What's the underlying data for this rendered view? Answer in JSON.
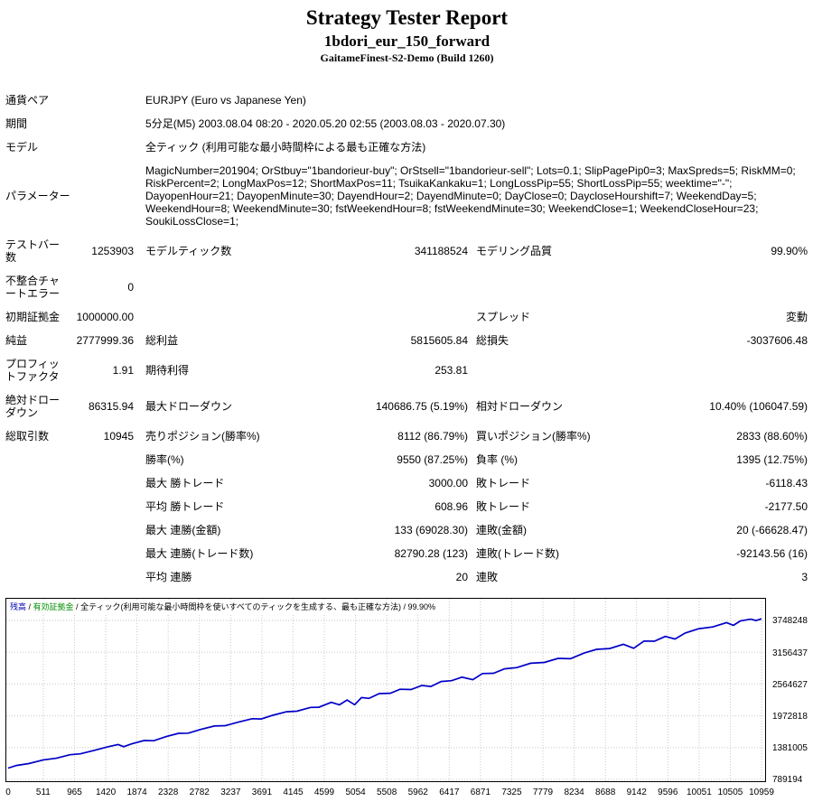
{
  "header": {
    "title": "Strategy Tester Report",
    "subtitle": "1bdori_eur_150_forward",
    "build": "GaitameFinest-S2-Demo (Build 1260)"
  },
  "rows": [
    {
      "type": "info",
      "label": "通貨ペア",
      "value": "EURJPY (Euro vs Japanese Yen)"
    },
    {
      "type": "info",
      "label": "期間",
      "value": "5分足(M5) 2003.08.04 08:20 - 2020.05.20 02:55 (2003.08.03 - 2020.07.30)"
    },
    {
      "type": "info",
      "label": "モデル",
      "value": "全ティック (利用可能な最小時間枠による最も正確な方法)"
    },
    {
      "type": "info",
      "label": "パラメーター",
      "value": "MagicNumber=201904; OrStbuy=\"1bandorieur-buy\"; OrStsell=\"1bandorieur-sell\"; Lots=0.1; SlipPagePip0=3; MaxSpreds=5; RiskMM=0; RiskPercent=2; LongMaxPos=12; ShortMaxPos=11; TsuikaKankaku=1; LongLossPip=55; ShortLossPip=55; weektime=\"-\"; DayopenHour=21; DayopenMinute=30; DayendHour=2; DayendMinute=0; DayClose=0; DaycloseHourshift=7; WeekendDay=5; WeekendHour=8; WeekendMinute=30; fstWeekendHour=8; fstWeekendMinute=30; WeekendClose=1; WeekendCloseHour=23; SoukiLossClose=1;"
    },
    {
      "type": "stats",
      "cells": [
        "テストバー数",
        "1253903",
        "モデルティック数",
        "341188524",
        "モデリング品質",
        "99.90%"
      ]
    },
    {
      "type": "stats",
      "cells": [
        "不整合チャートエラー",
        "0",
        "",
        "",
        "",
        ""
      ]
    },
    {
      "type": "stats",
      "cells": [
        "初期証拠金",
        "1000000.00",
        "",
        "",
        "スプレッド",
        "変動"
      ]
    },
    {
      "type": "stats",
      "cells": [
        "純益",
        "2777999.36",
        "総利益",
        "5815605.84",
        "総損失",
        "-3037606.48"
      ]
    },
    {
      "type": "stats",
      "cells": [
        "プロフィットファクタ",
        "1.91",
        "期待利得",
        "253.81",
        "",
        ""
      ]
    },
    {
      "type": "stats",
      "cells": [
        "絶対ドローダウン",
        "86315.94",
        "最大ドローダウン",
        "140686.75 (5.19%)",
        "相対ドローダウン",
        "10.40% (106047.59)"
      ]
    },
    {
      "type": "stats",
      "cells": [
        "総取引数",
        "10945",
        "売りポジション(勝率%)",
        "8112 (86.79%)",
        "買いポジション(勝率%)",
        "2833 (88.60%)"
      ]
    },
    {
      "type": "stats",
      "cells": [
        "",
        "",
        "勝率(%)",
        "9550 (87.25%)",
        "負率 (%)",
        "1395 (12.75%)"
      ]
    },
    {
      "type": "stats",
      "cells": [
        "",
        "",
        "最大 勝トレード",
        "3000.00",
        "敗トレード",
        "-6118.43"
      ]
    },
    {
      "type": "stats",
      "cells": [
        "",
        "",
        "平均 勝トレード",
        "608.96",
        "敗トレード",
        "-2177.50"
      ]
    },
    {
      "type": "stats",
      "cells": [
        "",
        "",
        "最大 連勝(金額)",
        "133 (69028.30)",
        "連敗(金額)",
        "20 (-66628.47)"
      ]
    },
    {
      "type": "stats",
      "cells": [
        "",
        "",
        "最大 連勝(トレード数)",
        "82790.28 (123)",
        "連敗(トレード数)",
        "-92143.56 (16)"
      ]
    },
    {
      "type": "stats",
      "cells": [
        "",
        "",
        "平均 連勝",
        "20",
        "連敗",
        "3"
      ]
    }
  ],
  "chart_data": {
    "type": "line",
    "legend": {
      "balance": "残高",
      "sep1": " / ",
      "equity": "有効証拠金",
      "sep2": " / ",
      "model": "全ティック(利用可能な最小時間枠を使いすべてのティックを生成する、最も正確な方法)",
      "sep3": " / ",
      "quality": "99.90%"
    },
    "x_ticks": [
      0,
      511,
      965,
      1420,
      1874,
      2328,
      2782,
      3237,
      3691,
      4145,
      4599,
      5054,
      5508,
      5962,
      6417,
      6871,
      7325,
      7779,
      8234,
      8688,
      9142,
      9596,
      10051,
      10505,
      10959
    ],
    "y_ticks": [
      789194,
      1381005,
      1972818,
      2564627,
      3156437,
      3748248
    ],
    "xlim": [
      0,
      10959
    ],
    "ylim": [
      789194,
      3860000
    ],
    "line_color": "#0000c8",
    "grid_color": "#c9c9c9",
    "series": [
      {
        "name": "残高",
        "points": [
          [
            0,
            1000000
          ],
          [
            120,
            1048457
          ],
          [
            300,
            1084143
          ],
          [
            511,
            1151697
          ],
          [
            700,
            1182667
          ],
          [
            900,
            1248429
          ],
          [
            1050,
            1264500
          ],
          [
            1250,
            1329263
          ],
          [
            1450,
            1396025
          ],
          [
            1600,
            1438096
          ],
          [
            1680,
            1398401
          ],
          [
            1800,
            1451858
          ],
          [
            1980,
            1514544
          ],
          [
            2120,
            1508077
          ],
          [
            2300,
            1585763
          ],
          [
            2480,
            1647449
          ],
          [
            2620,
            1649982
          ],
          [
            2800,
            1718668
          ],
          [
            3000,
            1783430
          ],
          [
            3160,
            1790040
          ],
          [
            3350,
            1855264
          ],
          [
            3550,
            1919026
          ],
          [
            3680,
            1914021
          ],
          [
            3850,
            1982169
          ],
          [
            4050,
            2047930
          ],
          [
            4200,
            2058002
          ],
          [
            4400,
            2128764
          ],
          [
            4520,
            2132222
          ],
          [
            4700,
            2222907
          ],
          [
            4820,
            2178366
          ],
          [
            4930,
            2266283
          ],
          [
            5040,
            2179202
          ],
          [
            5140,
            2312583
          ],
          [
            5250,
            2297503
          ],
          [
            5400,
            2385574
          ],
          [
            5560,
            2393184
          ],
          [
            5700,
            2466717
          ],
          [
            5860,
            2462327
          ],
          [
            6020,
            2537936
          ],
          [
            6150,
            2518932
          ],
          [
            6300,
            2611003
          ],
          [
            6450,
            2627075
          ],
          [
            6600,
            2693146
          ],
          [
            6760,
            2645756
          ],
          [
            6900,
            2759289
          ],
          [
            7060,
            2763900
          ],
          [
            7220,
            2847508
          ],
          [
            7400,
            2870194
          ],
          [
            7600,
            2950956
          ],
          [
            7800,
            2965718
          ],
          [
            8000,
            3042480
          ],
          [
            8180,
            3036166
          ],
          [
            8380,
            3141928
          ],
          [
            8560,
            3210614
          ],
          [
            8750,
            3225838
          ],
          [
            8950,
            3303600
          ],
          [
            9100,
            3229671
          ],
          [
            9250,
            3365743
          ],
          [
            9400,
            3360814
          ],
          [
            9560,
            3451424
          ],
          [
            9700,
            3401957
          ],
          [
            9850,
            3515029
          ],
          [
            10050,
            3595791
          ],
          [
            10250,
            3626556
          ],
          [
            10450,
            3707319
          ],
          [
            10550,
            3657696
          ],
          [
            10650,
            3738081
          ],
          [
            10800,
            3771149
          ],
          [
            10880,
            3746460
          ],
          [
            10959,
            3778000
          ]
        ]
      }
    ]
  }
}
